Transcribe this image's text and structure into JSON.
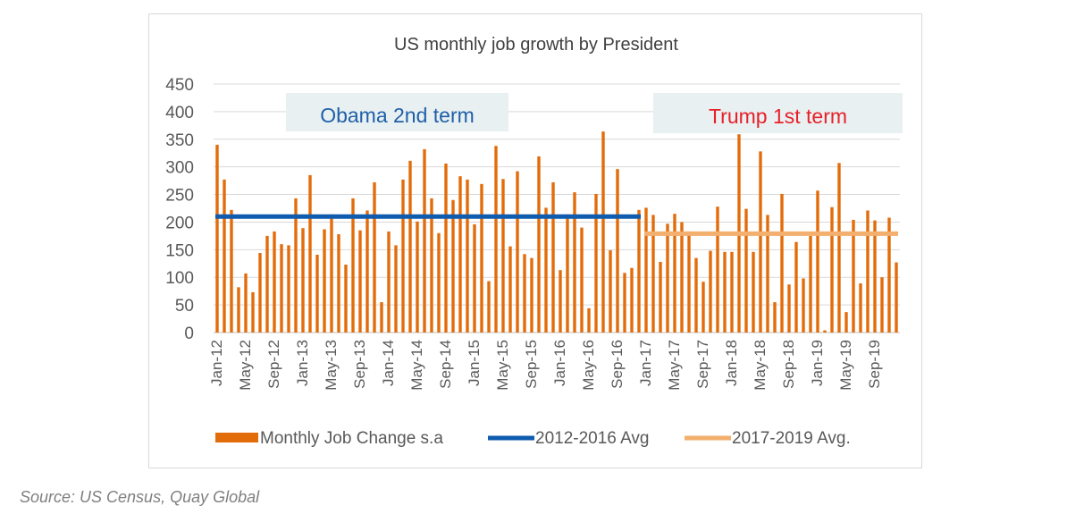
{
  "source_note": "Source: US Census, Quay Global",
  "chart_data": {
    "type": "bar",
    "title": "US monthly job growth by President",
    "xlabel": "",
    "ylabel": "",
    "ylim": [
      0,
      450
    ],
    "yticks": [
      0,
      50,
      100,
      150,
      200,
      250,
      300,
      350,
      400,
      450
    ],
    "grid": true,
    "legend_position": "bottom",
    "x_tick_labels": [
      "Jan-12",
      "May-12",
      "Sep-12",
      "Jan-13",
      "May-13",
      "Sep-13",
      "Jan-14",
      "May-14",
      "Sep-14",
      "Jan-15",
      "May-15",
      "Sep-15",
      "Jan-16",
      "May-16",
      "Sep-16",
      "Jan-17",
      "May-17",
      "Sep-17",
      "Jan-18",
      "May-18",
      "Sep-18",
      "Jan-19",
      "May-19",
      "Sep-19"
    ],
    "x_tick_every": 4,
    "categories": [
      "Jan-12",
      "Feb-12",
      "Mar-12",
      "Apr-12",
      "May-12",
      "Jun-12",
      "Jul-12",
      "Aug-12",
      "Sep-12",
      "Oct-12",
      "Nov-12",
      "Dec-12",
      "Jan-13",
      "Feb-13",
      "Mar-13",
      "Apr-13",
      "May-13",
      "Jun-13",
      "Jul-13",
      "Aug-13",
      "Sep-13",
      "Oct-13",
      "Nov-13",
      "Dec-13",
      "Jan-14",
      "Feb-14",
      "Mar-14",
      "Apr-14",
      "May-14",
      "Jun-14",
      "Jul-14",
      "Aug-14",
      "Sep-14",
      "Oct-14",
      "Nov-14",
      "Dec-14",
      "Jan-15",
      "Feb-15",
      "Mar-15",
      "Apr-15",
      "May-15",
      "Jun-15",
      "Jul-15",
      "Aug-15",
      "Sep-15",
      "Oct-15",
      "Nov-15",
      "Dec-15",
      "Jan-16",
      "Feb-16",
      "Mar-16",
      "Apr-16",
      "May-16",
      "Jun-16",
      "Jul-16",
      "Aug-16",
      "Sep-16",
      "Oct-16",
      "Nov-16",
      "Dec-16",
      "Jan-17",
      "Feb-17",
      "Mar-17",
      "Apr-17",
      "May-17",
      "Jun-17",
      "Jul-17",
      "Aug-17",
      "Sep-17",
      "Oct-17",
      "Nov-17",
      "Dec-17",
      "Jan-18",
      "Feb-18",
      "Mar-18",
      "Apr-18",
      "May-18",
      "Jun-18",
      "Jul-18",
      "Aug-18",
      "Sep-18",
      "Oct-18",
      "Nov-18",
      "Dec-18",
      "Jan-19",
      "Feb-19",
      "Mar-19",
      "Apr-19",
      "May-19",
      "Jun-19",
      "Jul-19",
      "Aug-19",
      "Sep-19",
      "Oct-19",
      "Nov-19",
      "Dec-19"
    ],
    "series": [
      {
        "name": "Monthly Job Change s.a",
        "kind": "bar",
        "color": "#E36C0A",
        "values": [
          340,
          277,
          222,
          82,
          107,
          73,
          144,
          175,
          183,
          160,
          158,
          243,
          189,
          285,
          141,
          187,
          214,
          178,
          123,
          243,
          185,
          221,
          272,
          55,
          183,
          158,
          277,
          311,
          201,
          332,
          243,
          180,
          306,
          240,
          283,
          277,
          196,
          269,
          93,
          338,
          278,
          156,
          292,
          142,
          135,
          319,
          226,
          272,
          113,
          214,
          254,
          190,
          44,
          251,
          364,
          149,
          296,
          108,
          117,
          222,
          226,
          213,
          128,
          197,
          215,
          200,
          183,
          135,
          92,
          148,
          228,
          146,
          146,
          359,
          224,
          146,
          328,
          213,
          55,
          251,
          87,
          164,
          98,
          175,
          257,
          4,
          227,
          307,
          37,
          204,
          89,
          221,
          203,
          100,
          208,
          127
        ]
      },
      {
        "name": "2012-2016 Avg",
        "kind": "line",
        "color": "#0F5CAF",
        "value": 210,
        "from": "Jan-12",
        "to": "Dec-16"
      },
      {
        "name": "2017-2019 Avg.",
        "kind": "line",
        "color": "#F2AF6E",
        "value": 179,
        "from": "Jan-17",
        "to": "Dec-19"
      }
    ],
    "annotations": [
      {
        "text": "Obama 2nd term",
        "color": "#1F5FA8",
        "background": "#E8F0F1"
      },
      {
        "text": "Trump 1st term",
        "color": "#E8202A",
        "background": "#E8F0F1"
      }
    ]
  }
}
